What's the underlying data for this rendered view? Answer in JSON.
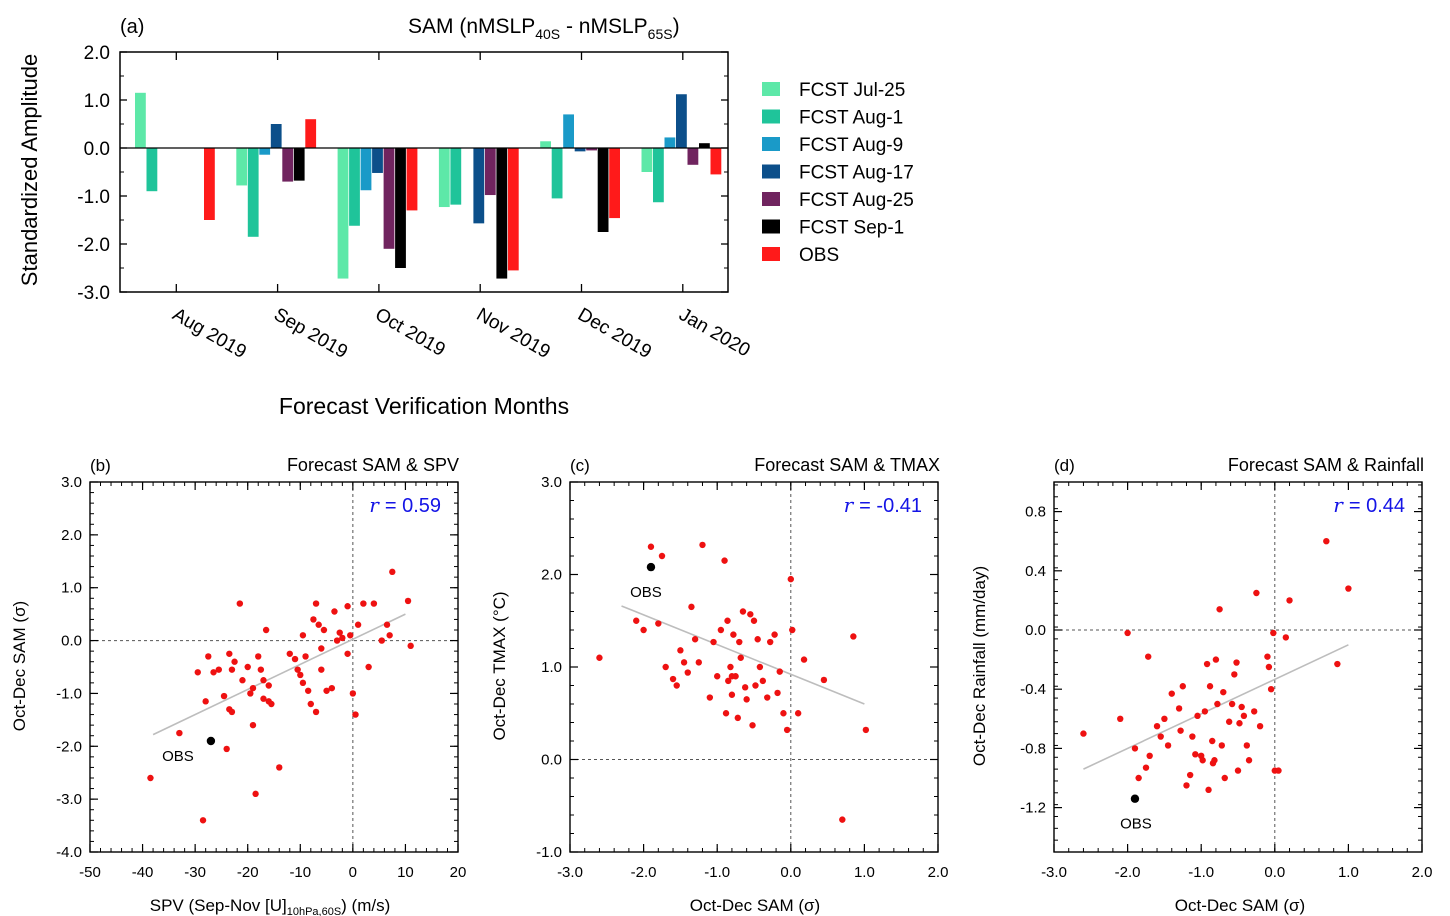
{
  "chart_data": [
    {
      "type": "bar",
      "panel_label": "(a)",
      "title": "SAM (nMSLP",
      "title_sub1": "40S",
      "title_mid": " - nMSLP",
      "title_sub2": "65S",
      "title_end": ")",
      "xlabel": "Forecast Verification Months",
      "ylabel": "Standardized Amplitude",
      "ylim": [
        -3,
        2
      ],
      "yticks": [
        "2.0",
        "1.0",
        "0.0",
        "-1.0",
        "-2.0",
        "-3.0"
      ],
      "categories": [
        "Aug 2019",
        "Sep 2019",
        "Oct 2019",
        "Nov 2019",
        "Dec 2019",
        "Jan 2020"
      ],
      "legend_position": "right",
      "series": [
        {
          "name": "FCST Jul-25",
          "color": "#5de8a8",
          "values": [
            1.15,
            -0.78,
            -2.72,
            -1.23,
            0.14,
            -0.5
          ]
        },
        {
          "name": "FCST Aug-1",
          "color": "#1fc49a",
          "values": [
            -0.9,
            -1.85,
            -1.62,
            -1.18,
            -1.05,
            -1.13
          ]
        },
        {
          "name": "FCST Aug-9",
          "color": "#1a9ac8",
          "values": [
            null,
            -0.14,
            -0.88,
            null,
            0.7,
            0.22
          ]
        },
        {
          "name": "FCST Aug-17",
          "color": "#0c4f8a",
          "values": [
            null,
            0.5,
            -0.52,
            -1.57,
            -0.07,
            1.12
          ]
        },
        {
          "name": "FCST Aug-25",
          "color": "#70245f",
          "values": [
            null,
            -0.7,
            -2.1,
            -0.98,
            -0.05,
            -0.35
          ]
        },
        {
          "name": "FCST Sep-1",
          "color": "#000000",
          "values": [
            null,
            -0.68,
            -2.5,
            -2.72,
            -1.75,
            0.1
          ]
        },
        {
          "name": "OBS",
          "color": "#ff1a1a",
          "values": [
            -1.5,
            0.6,
            -1.3,
            -2.55,
            -1.46,
            -0.55
          ]
        }
      ]
    },
    {
      "type": "scatter",
      "panel_label": "(b)",
      "title": "Forecast SAM & SPV",
      "xlabel_pre": "SPV (Sep-Nov [U]",
      "xlabel_sub": "10hPa,60S",
      "xlabel_post": ") (m/s)",
      "ylabel": "Oct-Dec SAM (σ)",
      "xlim": [
        -50,
        20
      ],
      "ylim": [
        -4,
        3
      ],
      "xticks": [
        -50,
        -40,
        -30,
        -20,
        -10,
        0,
        10,
        20
      ],
      "xtick_labels": [
        "-50",
        "-40",
        "-30",
        "-20",
        "-10",
        "0",
        "10",
        "20"
      ],
      "yticks": [
        3,
        2,
        1,
        0,
        -1,
        -2,
        -3,
        -4
      ],
      "ytick_labels": [
        "3.0",
        "2.0",
        "1.0",
        "0.0",
        "-1.0",
        "-2.0",
        "-3.0",
        "-4.0"
      ],
      "r_symbol": "r",
      "r_text": "=  0.59",
      "obs_label": "OBS",
      "obs": [
        -27,
        -1.9
      ],
      "fit_line": [
        [
          -38,
          -1.78
        ],
        [
          10,
          0.5
        ]
      ],
      "points": [
        [
          -38.5,
          -2.6
        ],
        [
          -33,
          -1.75
        ],
        [
          -29.5,
          -0.6
        ],
        [
          -28.5,
          -3.4
        ],
        [
          -28,
          -1.15
        ],
        [
          -27.5,
          -0.3
        ],
        [
          -26.5,
          -0.6
        ],
        [
          -25.5,
          -0.55
        ],
        [
          -24.5,
          -1.05
        ],
        [
          -24,
          -2.05
        ],
        [
          -23.5,
          -0.25
        ],
        [
          -23,
          -0.55
        ],
        [
          -23.5,
          -1.3
        ],
        [
          -23,
          -1.35
        ],
        [
          -22.5,
          -0.4
        ],
        [
          -21.5,
          0.7
        ],
        [
          -21,
          -0.75
        ],
        [
          -20,
          -0.5
        ],
        [
          -19.5,
          -1.0
        ],
        [
          -19,
          -0.9
        ],
        [
          -19,
          -1.6
        ],
        [
          -18.5,
          -2.9
        ],
        [
          -18,
          -0.3
        ],
        [
          -17.5,
          -0.55
        ],
        [
          -17,
          -0.75
        ],
        [
          -17,
          -1.1
        ],
        [
          -16.5,
          0.2
        ],
        [
          -16,
          -0.85
        ],
        [
          -16,
          -1.15
        ],
        [
          -15.5,
          -1.2
        ],
        [
          -14,
          -2.4
        ],
        [
          -12,
          -0.25
        ],
        [
          -11,
          -0.35
        ],
        [
          -10.5,
          -0.55
        ],
        [
          -10,
          -0.65
        ],
        [
          -9.5,
          -0.8
        ],
        [
          -9.5,
          0.1
        ],
        [
          -9,
          -0.3
        ],
        [
          -8.5,
          -0.95
        ],
        [
          -8,
          -1.2
        ],
        [
          -7.5,
          0.4
        ],
        [
          -7,
          0.7
        ],
        [
          -7,
          -1.35
        ],
        [
          -6.5,
          0.3
        ],
        [
          -6,
          -0.15
        ],
        [
          -6,
          -0.55
        ],
        [
          -5.5,
          0.2
        ],
        [
          -5,
          -0.95
        ],
        [
          -4,
          -0.9
        ],
        [
          -3.5,
          0.55
        ],
        [
          -3,
          0.0
        ],
        [
          -2.5,
          0.15
        ],
        [
          -2,
          0.05
        ],
        [
          -1,
          0.65
        ],
        [
          -1,
          -0.25
        ],
        [
          -0.5,
          0.1
        ],
        [
          0,
          -1.0
        ],
        [
          0.5,
          -1.4
        ],
        [
          1,
          0.3
        ],
        [
          2,
          0.7
        ],
        [
          3,
          -0.5
        ],
        [
          4,
          0.7
        ],
        [
          5.5,
          0.0
        ],
        [
          6.5,
          0.3
        ],
        [
          7,
          0.1
        ],
        [
          7.5,
          1.3
        ],
        [
          10.5,
          0.75
        ],
        [
          11,
          -0.1
        ]
      ]
    },
    {
      "type": "scatter",
      "panel_label": "(c)",
      "title": "Forecast SAM & TMAX",
      "xlabel": "Oct-Dec SAM (σ)",
      "ylabel": "Oct-Dec TMAX (°C)",
      "xlim": [
        -3,
        2
      ],
      "ylim": [
        -1,
        3
      ],
      "xticks": [
        -3,
        -2,
        -1,
        0,
        1,
        2
      ],
      "xtick_labels": [
        "-3.0",
        "-2.0",
        "-1.0",
        "0.0",
        "1.0",
        "2.0"
      ],
      "yticks": [
        3,
        2,
        1,
        0,
        -1
      ],
      "ytick_labels": [
        "3.0",
        "2.0",
        "1.0",
        "0.0",
        "-1.0"
      ],
      "r_symbol": "r",
      "r_text": "= -0.41",
      "obs_label": "OBS",
      "obs": [
        -1.9,
        2.08
      ],
      "fit_line": [
        [
          -2.3,
          1.66
        ],
        [
          1.0,
          0.6
        ]
      ],
      "points": [
        [
          -2.6,
          1.1
        ],
        [
          -2.1,
          1.5
        ],
        [
          -2.0,
          1.4
        ],
        [
          -1.9,
          2.3
        ],
        [
          -1.8,
          1.47
        ],
        [
          -1.75,
          2.2
        ],
        [
          -1.7,
          1.0
        ],
        [
          -1.6,
          0.87
        ],
        [
          -1.55,
          0.8
        ],
        [
          -1.5,
          1.18
        ],
        [
          -1.45,
          1.05
        ],
        [
          -1.4,
          0.94
        ],
        [
          -1.35,
          1.65
        ],
        [
          -1.3,
          1.3
        ],
        [
          -1.25,
          1.05
        ],
        [
          -1.2,
          2.32
        ],
        [
          -1.1,
          0.67
        ],
        [
          -1.05,
          1.27
        ],
        [
          -1.0,
          0.9
        ],
        [
          -0.95,
          1.4
        ],
        [
          -0.9,
          2.15
        ],
        [
          -0.88,
          0.5
        ],
        [
          -0.86,
          1.5
        ],
        [
          -0.85,
          0.85
        ],
        [
          -0.82,
          1.0
        ],
        [
          -0.8,
          0.9
        ],
        [
          -0.8,
          0.7
        ],
        [
          -0.78,
          1.35
        ],
        [
          -0.75,
          0.9
        ],
        [
          -0.72,
          0.45
        ],
        [
          -0.7,
          1.27
        ],
        [
          -0.68,
          1.1
        ],
        [
          -0.65,
          1.6
        ],
        [
          -0.62,
          0.78
        ],
        [
          -0.6,
          0.65
        ],
        [
          -0.55,
          1.57
        ],
        [
          -0.52,
          0.37
        ],
        [
          -0.5,
          1.5
        ],
        [
          -0.48,
          0.8
        ],
        [
          -0.45,
          1.3
        ],
        [
          -0.42,
          1.0
        ],
        [
          -0.38,
          0.85
        ],
        [
          -0.32,
          0.67
        ],
        [
          -0.28,
          1.27
        ],
        [
          -0.22,
          1.35
        ],
        [
          -0.18,
          0.72
        ],
        [
          -0.15,
          0.95
        ],
        [
          -0.1,
          0.5
        ],
        [
          -0.05,
          0.32
        ],
        [
          0.0,
          1.95
        ],
        [
          0.02,
          1.4
        ],
        [
          0.1,
          0.5
        ],
        [
          0.18,
          1.08
        ],
        [
          0.45,
          0.86
        ],
        [
          0.7,
          -0.65
        ],
        [
          0.85,
          1.33
        ],
        [
          1.02,
          0.32
        ]
      ]
    },
    {
      "type": "scatter",
      "panel_label": "(d)",
      "title": "Forecast SAM & Rainfall",
      "xlabel": "Oct-Dec SAM (σ)",
      "ylabel": "Oct-Dec Rainfall (mm/day)",
      "xlim": [
        -3,
        2
      ],
      "ylim": [
        -1.5,
        1.0
      ],
      "xticks": [
        -3,
        -2,
        -1,
        0,
        1,
        2
      ],
      "xtick_labels": [
        "-3.0",
        "-2.0",
        "-1.0",
        "0.0",
        "1.0",
        "2.0"
      ],
      "yticks": [
        0.8,
        0.4,
        0.0,
        -0.4,
        -0.8,
        -1.2
      ],
      "ytick_labels": [
        "0.8",
        "0.4",
        "0.0",
        "-0.4",
        "-0.8",
        "-1.2"
      ],
      "r_symbol": "r",
      "r_text": "=  0.44",
      "obs_label": "OBS",
      "obs": [
        -1.9,
        -1.14
      ],
      "fit_line": [
        [
          -2.6,
          -0.94
        ],
        [
          1.0,
          -0.1
        ]
      ],
      "points": [
        [
          -2.6,
          -0.7
        ],
        [
          -2.1,
          -0.6
        ],
        [
          -2.0,
          -0.02
        ],
        [
          -1.9,
          -0.8
        ],
        [
          -1.85,
          -1.0
        ],
        [
          -1.75,
          -0.93
        ],
        [
          -1.72,
          -0.18
        ],
        [
          -1.7,
          -0.85
        ],
        [
          -1.6,
          -0.65
        ],
        [
          -1.55,
          -0.72
        ],
        [
          -1.5,
          -0.6
        ],
        [
          -1.45,
          -0.78
        ],
        [
          -1.4,
          -0.43
        ],
        [
          -1.3,
          -0.53
        ],
        [
          -1.28,
          -0.68
        ],
        [
          -1.25,
          -0.38
        ],
        [
          -1.2,
          -1.05
        ],
        [
          -1.15,
          -0.98
        ],
        [
          -1.12,
          -0.72
        ],
        [
          -1.08,
          -0.84
        ],
        [
          -1.05,
          -0.58
        ],
        [
          -1.0,
          -0.85
        ],
        [
          -0.98,
          -0.88
        ],
        [
          -0.95,
          -0.55
        ],
        [
          -0.92,
          -0.23
        ],
        [
          -0.9,
          -1.08
        ],
        [
          -0.88,
          -0.38
        ],
        [
          -0.85,
          -0.75
        ],
        [
          -0.84,
          -0.9
        ],
        [
          -0.82,
          -0.88
        ],
        [
          -0.8,
          -0.2
        ],
        [
          -0.78,
          -0.5
        ],
        [
          -0.75,
          0.14
        ],
        [
          -0.72,
          -0.78
        ],
        [
          -0.7,
          -0.42
        ],
        [
          -0.68,
          -1.0
        ],
        [
          -0.62,
          -0.62
        ],
        [
          -0.58,
          -0.5
        ],
        [
          -0.55,
          -0.3
        ],
        [
          -0.52,
          -0.22
        ],
        [
          -0.5,
          -0.95
        ],
        [
          -0.48,
          -0.63
        ],
        [
          -0.45,
          -0.52
        ],
        [
          -0.42,
          -0.58
        ],
        [
          -0.38,
          -0.78
        ],
        [
          -0.35,
          -0.88
        ],
        [
          -0.28,
          -0.55
        ],
        [
          -0.25,
          0.25
        ],
        [
          -0.2,
          -0.65
        ],
        [
          -0.1,
          -0.18
        ],
        [
          -0.08,
          -0.25
        ],
        [
          -0.05,
          -0.4
        ],
        [
          -0.02,
          -0.02
        ],
        [
          0.0,
          -0.95
        ],
        [
          0.05,
          -0.95
        ],
        [
          0.15,
          -0.05
        ],
        [
          0.2,
          0.2
        ],
        [
          0.7,
          0.6
        ],
        [
          0.85,
          -0.23
        ],
        [
          1.0,
          0.28
        ]
      ]
    }
  ]
}
